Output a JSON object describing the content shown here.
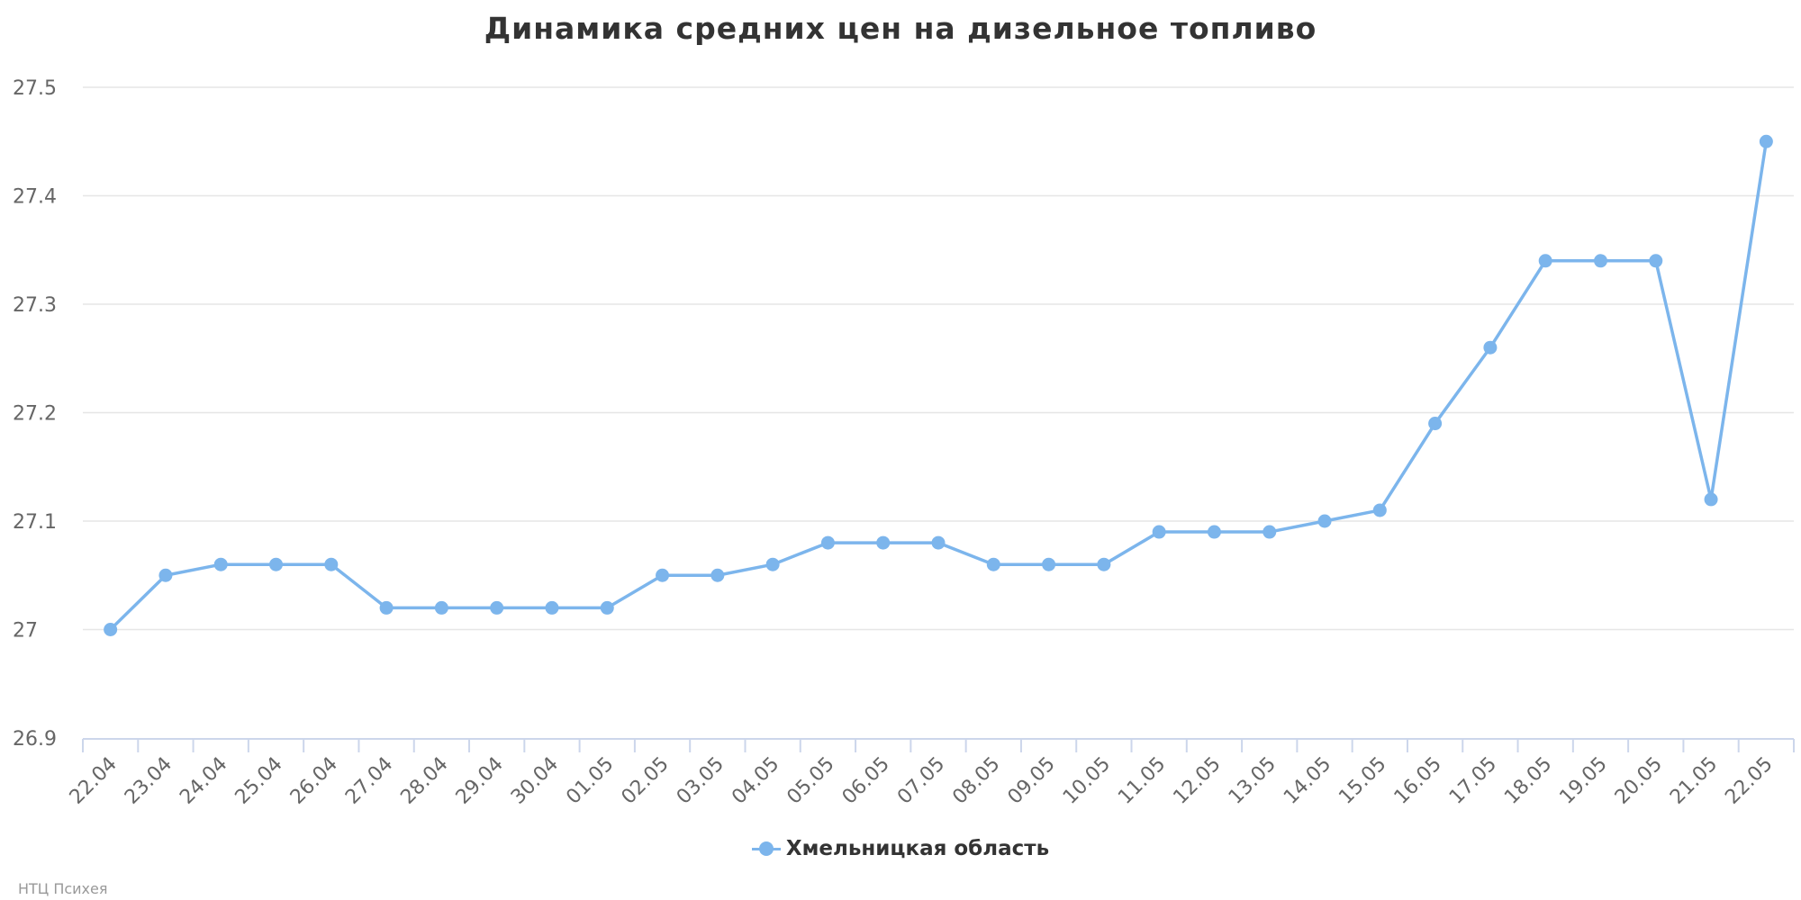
{
  "chart_data": {
    "type": "line",
    "title": "Динамика средних цен на дизельное топливо",
    "categories": [
      "22.04",
      "23.04",
      "24.04",
      "25.04",
      "26.04",
      "27.04",
      "28.04",
      "29.04",
      "30.04",
      "01.05",
      "02.05",
      "03.05",
      "04.05",
      "05.05",
      "06.05",
      "07.05",
      "08.05",
      "09.05",
      "10.05",
      "11.05",
      "12.05",
      "13.05",
      "14.05",
      "15.05",
      "16.05",
      "17.05",
      "18.05",
      "19.05",
      "20.05",
      "21.05",
      "22.05"
    ],
    "series": [
      {
        "name": "Хмельницкая область",
        "values": [
          27.0,
          27.05,
          27.06,
          27.06,
          27.06,
          27.02,
          27.02,
          27.02,
          27.02,
          27.02,
          27.05,
          27.05,
          27.06,
          27.08,
          27.08,
          27.08,
          27.06,
          27.06,
          27.06,
          27.09,
          27.09,
          27.09,
          27.1,
          27.11,
          27.19,
          27.26,
          27.34,
          27.34,
          27.34,
          27.12,
          27.45
        ]
      }
    ],
    "y_ticks": [
      "26.9",
      "27",
      "27.1",
      "27.2",
      "27.3",
      "27.4",
      "27.5"
    ],
    "ylim": [
      26.9,
      27.5
    ],
    "xlabel": "",
    "ylabel": "",
    "grid": true,
    "legend": "bottom-center",
    "series_color": "#7cb5ec",
    "credits": "НТЦ Психея"
  }
}
